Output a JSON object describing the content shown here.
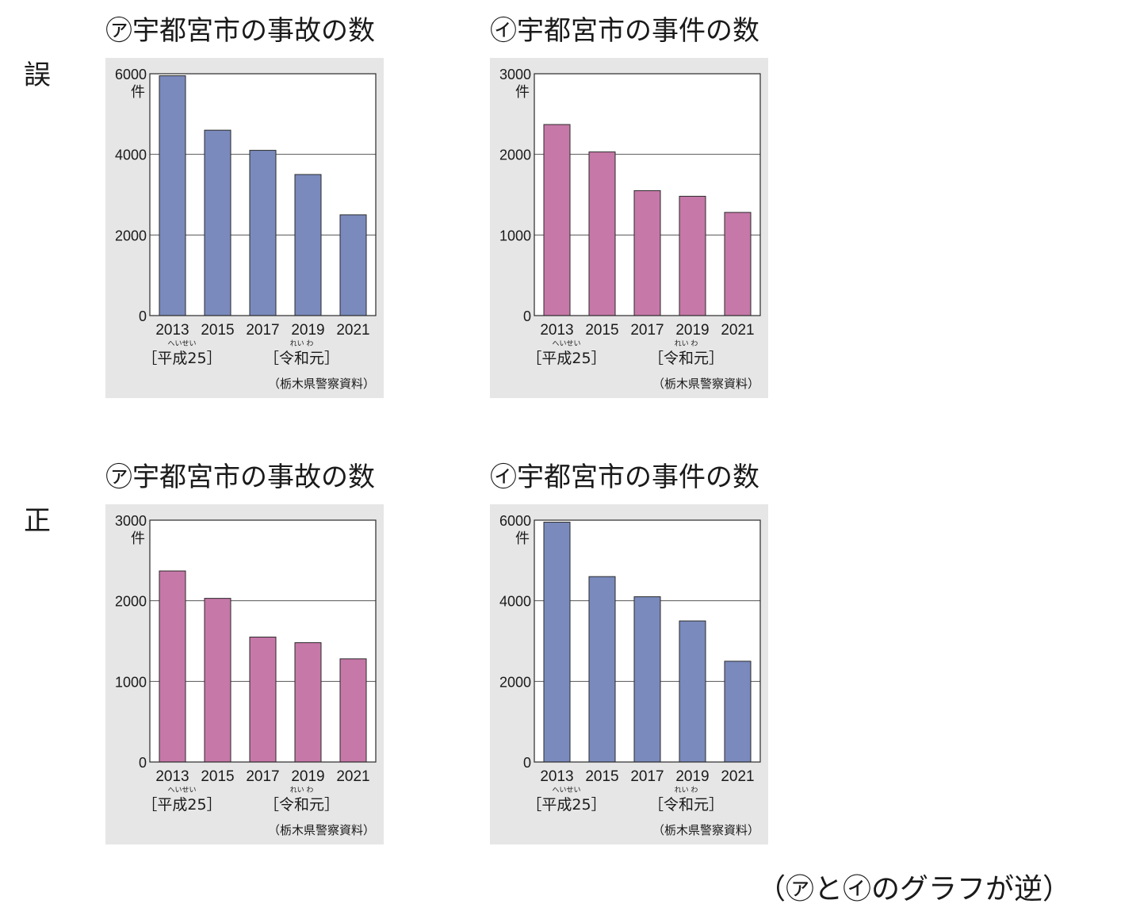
{
  "row_labels": {
    "wrong": "誤",
    "correct": "正"
  },
  "footnote": "（㋐と㋑のグラフが逆）",
  "colors": {
    "accident_bar": "#7a8abd",
    "incident_bar": "#c678a8",
    "panel_bg": "#e6e6e6"
  },
  "chart_data": [
    {
      "type": "bar",
      "title": "㋐宇都宮市の事故の数",
      "ylabel": "件",
      "categories": [
        "2013",
        "2015",
        "2017",
        "2019",
        "2021"
      ],
      "era_labels": {
        "heisei": "［平成25］",
        "heisei_ruby": "へいせい",
        "reiwa": "［令和元］",
        "reiwa_ruby": "れい わ"
      },
      "ylim": [
        0,
        6000
      ],
      "yticks": [
        "0",
        "2000",
        "4000",
        "6000"
      ],
      "values": [
        5950,
        4600,
        4100,
        3500,
        2500
      ],
      "source": "（栃木県警察資料）",
      "bar_color": "#7a8abd",
      "grid": true
    },
    {
      "type": "bar",
      "title": "㋑宇都宮市の事件の数",
      "ylabel": "件",
      "categories": [
        "2013",
        "2015",
        "2017",
        "2019",
        "2021"
      ],
      "era_labels": {
        "heisei": "［平成25］",
        "heisei_ruby": "へいせい",
        "reiwa": "［令和元］",
        "reiwa_ruby": "れい わ"
      },
      "ylim": [
        0,
        3000
      ],
      "yticks": [
        "0",
        "1000",
        "2000",
        "3000"
      ],
      "values": [
        2370,
        2030,
        1550,
        1480,
        1280
      ],
      "source": "（栃木県警察資料）",
      "bar_color": "#c678a8",
      "grid": true
    },
    {
      "type": "bar",
      "title": "㋐宇都宮市の事故の数",
      "ylabel": "件",
      "categories": [
        "2013",
        "2015",
        "2017",
        "2019",
        "2021"
      ],
      "era_labels": {
        "heisei": "［平成25］",
        "heisei_ruby": "へいせい",
        "reiwa": "［令和元］",
        "reiwa_ruby": "れい わ"
      },
      "ylim": [
        0,
        3000
      ],
      "yticks": [
        "0",
        "1000",
        "2000",
        "3000"
      ],
      "values": [
        2370,
        2030,
        1550,
        1480,
        1280
      ],
      "source": "（栃木県警察資料）",
      "bar_color": "#c678a8",
      "grid": true
    },
    {
      "type": "bar",
      "title": "㋑宇都宮市の事件の数",
      "ylabel": "件",
      "categories": [
        "2013",
        "2015",
        "2017",
        "2019",
        "2021"
      ],
      "era_labels": {
        "heisei": "［平成25］",
        "heisei_ruby": "へいせい",
        "reiwa": "［令和元］",
        "reiwa_ruby": "れい わ"
      },
      "ylim": [
        0,
        6000
      ],
      "yticks": [
        "0",
        "2000",
        "4000",
        "6000"
      ],
      "values": [
        5950,
        4600,
        4100,
        3500,
        2500
      ],
      "source": "（栃木県警察資料）",
      "bar_color": "#7a8abd",
      "grid": true
    }
  ]
}
